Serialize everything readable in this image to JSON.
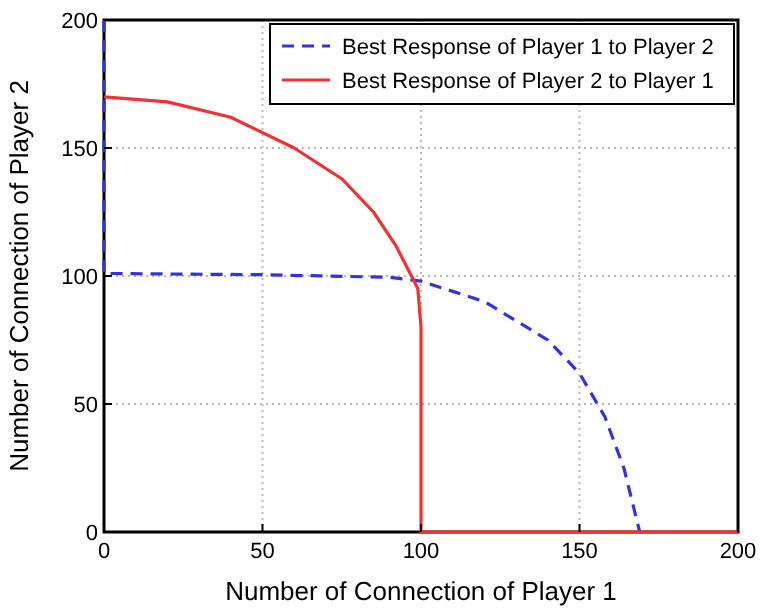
{
  "chart_data": {
    "type": "line",
    "xlabel": "Number of Connection of Player 1",
    "ylabel": "Number of Connection of Player 2",
    "xlim": [
      0,
      200
    ],
    "ylim": [
      0,
      200
    ],
    "xticks": [
      0,
      50,
      100,
      150,
      200
    ],
    "yticks": [
      0,
      50,
      100,
      150,
      200
    ],
    "grid": true,
    "legend": "top right",
    "marker": "none",
    "series": [
      {
        "name": "Best Response of Player 1 to Player 2",
        "color": "#3333dd",
        "line_style": "dashed",
        "x": [
          0,
          0,
          50,
          90,
          100,
          120,
          140,
          150,
          158,
          164,
          167,
          169
        ],
        "values": [
          200,
          101,
          100.5,
          99.5,
          98,
          90,
          75,
          62,
          45,
          25,
          10,
          0
        ]
      },
      {
        "name": "Best Response of Player 2 to Player 1",
        "color": "#ee3333",
        "line_style": "solid",
        "x": [
          0,
          20,
          40,
          60,
          75,
          85,
          92,
          97,
          99,
          100,
          100,
          200
        ],
        "values": [
          170,
          168,
          162,
          150,
          138,
          125,
          112,
          100,
          95,
          80,
          0,
          0
        ]
      }
    ]
  }
}
